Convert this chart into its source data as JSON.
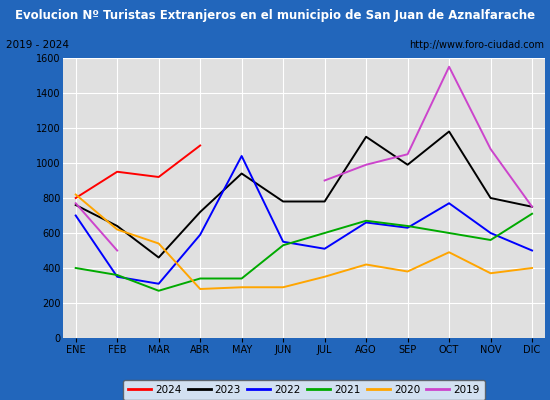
{
  "title": "Evolucion Nº Turistas Extranjeros en el municipio de San Juan de Aznalfarache",
  "subtitle_left": "2019 - 2024",
  "subtitle_right": "http://www.foro-ciudad.com",
  "months": [
    "ENE",
    "FEB",
    "MAR",
    "ABR",
    "MAY",
    "JUN",
    "JUL",
    "AGO",
    "SEP",
    "OCT",
    "NOV",
    "DIC"
  ],
  "series": {
    "2024": [
      800,
      950,
      920,
      1100,
      null,
      null,
      null,
      null,
      null,
      null,
      null,
      null
    ],
    "2023": [
      760,
      640,
      460,
      720,
      940,
      780,
      780,
      1150,
      990,
      1180,
      800,
      750
    ],
    "2022": [
      700,
      350,
      310,
      590,
      1040,
      550,
      510,
      660,
      630,
      770,
      600,
      500
    ],
    "2021": [
      400,
      360,
      270,
      340,
      340,
      530,
      600,
      670,
      640,
      600,
      560,
      710
    ],
    "2020": [
      820,
      620,
      540,
      280,
      290,
      290,
      350,
      420,
      380,
      490,
      370,
      400
    ],
    "2019": [
      770,
      500,
      null,
      null,
      null,
      null,
      900,
      990,
      1050,
      1550,
      1080,
      750
    ]
  },
  "colors": {
    "2024": "#ff0000",
    "2023": "#000000",
    "2022": "#0000ff",
    "2021": "#00aa00",
    "2020": "#ffa500",
    "2019": "#cc44cc"
  },
  "ylim": [
    0,
    1600
  ],
  "yticks": [
    0,
    200,
    400,
    600,
    800,
    1000,
    1200,
    1400,
    1600
  ],
  "title_bg": "#2266bb",
  "title_color": "#ffffff",
  "subtitle_bg": "#f0f0f0",
  "plot_bg": "#e0e0e0",
  "grid_color": "#ffffff",
  "border_color": "#2266bb",
  "outer_bg": "#f0f0f0"
}
